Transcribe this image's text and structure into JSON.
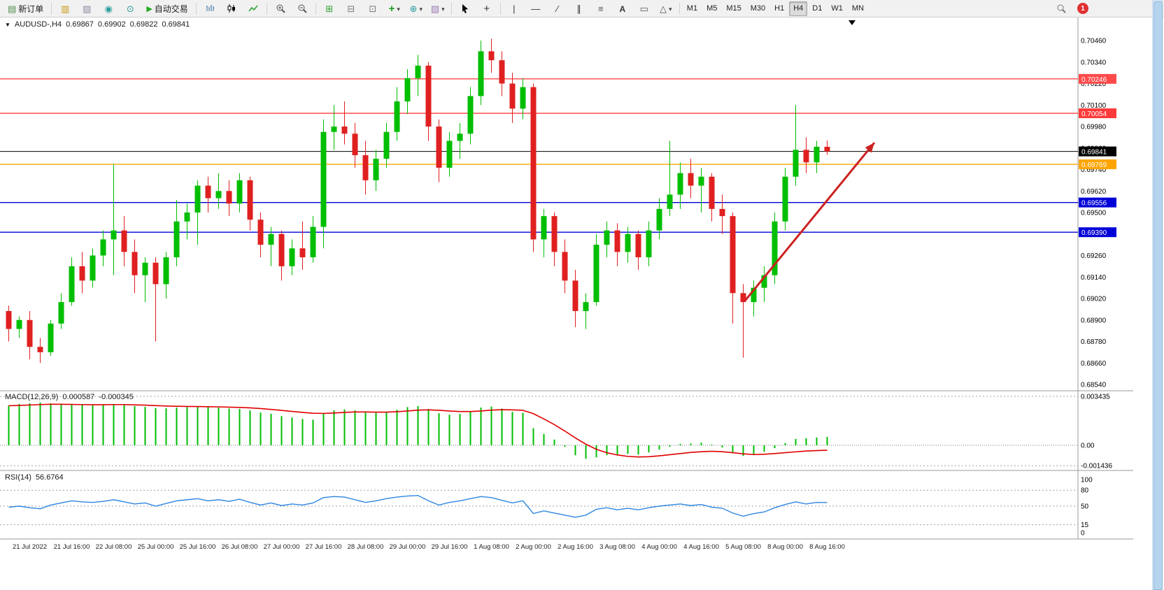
{
  "toolbar": {
    "new_order_label": "新订单",
    "auto_trading_label": "自动交易",
    "timeframes": [
      "M1",
      "M5",
      "M15",
      "M30",
      "H1",
      "H4",
      "D1",
      "W1",
      "MN"
    ],
    "active_timeframe": "H4",
    "notification_count": "1"
  },
  "chart_header": {
    "symbol": "AUDUSD-,H4",
    "open": "0.69867",
    "high": "0.69902",
    "low": "0.69822",
    "close": "0.69841"
  },
  "macd_header": {
    "label": "MACD(12,26,9)",
    "main_value": "0.000587",
    "signal_value": "-0.000345"
  },
  "rsi_header": {
    "label": "RSI(14)",
    "value": "56.6764"
  },
  "chart_data": {
    "type": "candlestick",
    "symbol": "AUDUSD",
    "timeframe": "H4",
    "main": {
      "up_color": "#00BE00",
      "down_color": "#E02020",
      "candles": [
        [
          0.6895,
          0.6898,
          0.6878,
          0.6885
        ],
        [
          0.6885,
          0.6892,
          0.688,
          0.689
        ],
        [
          0.689,
          0.6895,
          0.6868,
          0.6875
        ],
        [
          0.6875,
          0.688,
          0.6866,
          0.6872
        ],
        [
          0.6872,
          0.689,
          0.687,
          0.6888
        ],
        [
          0.6888,
          0.6905,
          0.6885,
          0.69
        ],
        [
          0.69,
          0.6925,
          0.6898,
          0.692
        ],
        [
          0.692,
          0.6928,
          0.6905,
          0.6912
        ],
        [
          0.6912,
          0.693,
          0.6908,
          0.6926
        ],
        [
          0.6926,
          0.694,
          0.692,
          0.6935
        ],
        [
          0.6935,
          0.6977,
          0.6915,
          0.694
        ],
        [
          0.694,
          0.6948,
          0.692,
          0.6928
        ],
        [
          0.6928,
          0.6935,
          0.6905,
          0.6915
        ],
        [
          0.6915,
          0.6925,
          0.69,
          0.6922
        ],
        [
          0.6922,
          0.6925,
          0.6878,
          0.691
        ],
        [
          0.691,
          0.6928,
          0.6902,
          0.6925
        ],
        [
          0.6925,
          0.6957,
          0.692,
          0.6945
        ],
        [
          0.6945,
          0.6955,
          0.6935,
          0.695
        ],
        [
          0.695,
          0.6968,
          0.6932,
          0.6965
        ],
        [
          0.6965,
          0.697,
          0.695,
          0.6958
        ],
        [
          0.6958,
          0.6972,
          0.6952,
          0.6962
        ],
        [
          0.6962,
          0.6968,
          0.6948,
          0.6955
        ],
        [
          0.6955,
          0.6972,
          0.695,
          0.6968
        ],
        [
          0.6968,
          0.697,
          0.694,
          0.6946
        ],
        [
          0.6946,
          0.695,
          0.6925,
          0.6932
        ],
        [
          0.6932,
          0.6942,
          0.692,
          0.6938
        ],
        [
          0.6938,
          0.694,
          0.6912,
          0.692
        ],
        [
          0.692,
          0.6935,
          0.6915,
          0.693
        ],
        [
          0.693,
          0.6945,
          0.6918,
          0.6925
        ],
        [
          0.6925,
          0.6948,
          0.6922,
          0.6942
        ],
        [
          0.6942,
          0.7002,
          0.693,
          0.6995
        ],
        [
          0.6995,
          0.701,
          0.6985,
          0.6998
        ],
        [
          0.6998,
          0.7012,
          0.6988,
          0.6994
        ],
        [
          0.6994,
          0.7,
          0.6975,
          0.6982
        ],
        [
          0.6982,
          0.699,
          0.696,
          0.6968
        ],
        [
          0.6968,
          0.6985,
          0.6962,
          0.698
        ],
        [
          0.698,
          0.7,
          0.6975,
          0.6995
        ],
        [
          0.6995,
          0.702,
          0.699,
          0.7012
        ],
        [
          0.7012,
          0.703,
          0.7005,
          0.7025
        ],
        [
          0.7025,
          0.7038,
          0.7015,
          0.7032
        ],
        [
          0.7032,
          0.7034,
          0.699,
          0.6998
        ],
        [
          0.6998,
          0.7002,
          0.6967,
          0.6975
        ],
        [
          0.6975,
          0.6995,
          0.697,
          0.699
        ],
        [
          0.699,
          0.7,
          0.698,
          0.6994
        ],
        [
          0.6994,
          0.702,
          0.6988,
          0.7015
        ],
        [
          0.7015,
          0.7046,
          0.701,
          0.704
        ],
        [
          0.704,
          0.7047,
          0.7028,
          0.7035
        ],
        [
          0.7035,
          0.704,
          0.7015,
          0.7022
        ],
        [
          0.7022,
          0.7028,
          0.7,
          0.7008
        ],
        [
          0.7008,
          0.7025,
          0.7002,
          0.702
        ],
        [
          0.702,
          0.7022,
          0.6928,
          0.6935
        ],
        [
          0.6935,
          0.6952,
          0.6925,
          0.6948
        ],
        [
          0.6948,
          0.695,
          0.692,
          0.6928
        ],
        [
          0.6928,
          0.6935,
          0.6905,
          0.6912
        ],
        [
          0.6912,
          0.6918,
          0.6886,
          0.6895
        ],
        [
          0.6895,
          0.6905,
          0.6885,
          0.69
        ],
        [
          0.69,
          0.6938,
          0.6898,
          0.6932
        ],
        [
          0.6932,
          0.6945,
          0.6925,
          0.694
        ],
        [
          0.694,
          0.6944,
          0.692,
          0.6928
        ],
        [
          0.6928,
          0.6942,
          0.6922,
          0.6938
        ],
        [
          0.6938,
          0.694,
          0.6918,
          0.6925
        ],
        [
          0.6925,
          0.6945,
          0.692,
          0.694
        ],
        [
          0.694,
          0.6958,
          0.6935,
          0.6952
        ],
        [
          0.6952,
          0.699,
          0.6948,
          0.696
        ],
        [
          0.696,
          0.6978,
          0.6952,
          0.6972
        ],
        [
          0.6972,
          0.698,
          0.6958,
          0.6965
        ],
        [
          0.6965,
          0.6975,
          0.695,
          0.697
        ],
        [
          0.697,
          0.6972,
          0.6945,
          0.6952
        ],
        [
          0.6952,
          0.696,
          0.6938,
          0.6948
        ],
        [
          0.6948,
          0.695,
          0.6888,
          0.6905
        ],
        [
          0.6905,
          0.691,
          0.6869,
          0.69
        ],
        [
          0.69,
          0.6912,
          0.6892,
          0.6908
        ],
        [
          0.6908,
          0.692,
          0.69,
          0.6915
        ],
        [
          0.6915,
          0.695,
          0.691,
          0.6945
        ],
        [
          0.6945,
          0.6975,
          0.694,
          0.697
        ],
        [
          0.697,
          0.701,
          0.6965,
          0.6985
        ],
        [
          0.6985,
          0.6992,
          0.6972,
          0.6978
        ],
        [
          0.6978,
          0.699,
          0.6972,
          0.69867
        ],
        [
          0.69867,
          0.69902,
          0.69822,
          0.69841
        ]
      ],
      "hlines": [
        {
          "price": 0.70246,
          "color": "#FF4A4A",
          "label": "0.70246"
        },
        {
          "price": 0.70054,
          "color": "#FF3A3A",
          "label": "0.70054"
        },
        {
          "price": 0.69841,
          "color": "#000000",
          "label": "0.69841"
        },
        {
          "price": 0.69769,
          "color": "#FFA500",
          "label": "0.69769"
        },
        {
          "price": 0.69556,
          "color": "#0000D8",
          "label": "0.69556"
        },
        {
          "price": 0.6939,
          "color": "#0000D8",
          "label": "0.69390"
        }
      ],
      "arrow": {
        "bar_from": 70.2,
        "price_from": 0.6901,
        "bar_to": 82.5,
        "price_to": 0.6989,
        "color": "#CC2222"
      },
      "y_axis": {
        "labels": [
          "0.70460",
          "0.70340",
          "0.70220",
          "0.70100",
          "0.69980",
          "0.69860",
          "0.69740",
          "0.69620",
          "0.69500",
          "0.69380",
          "0.69260",
          "0.69140",
          "0.69020",
          "0.68900",
          "0.68780",
          "0.68660",
          "0.68540"
        ]
      },
      "x_axis": {
        "labels": [
          {
            "bar": 2,
            "text": "21 Jul 2022"
          },
          {
            "bar": 6,
            "text": "21 Jul 16:00"
          },
          {
            "bar": 10,
            "text": "22 Jul 08:00"
          },
          {
            "bar": 14,
            "text": "25 Jul 00:00"
          },
          {
            "bar": 18,
            "text": "25 Jul 16:00"
          },
          {
            "bar": 22,
            "text": "26 Jul 08:00"
          },
          {
            "bar": 26,
            "text": "27 Jul 00:00"
          },
          {
            "bar": 30,
            "text": "27 Jul 16:00"
          },
          {
            "bar": 34,
            "text": "28 Jul 08:00"
          },
          {
            "bar": 38,
            "text": "29 Jul 00:00"
          },
          {
            "bar": 42,
            "text": "29 Jul 16:00"
          },
          {
            "bar": 46,
            "text": "1 Aug 08:00"
          },
          {
            "bar": 50,
            "text": "2 Aug 00:00"
          },
          {
            "bar": 54,
            "text": "2 Aug 16:00"
          },
          {
            "bar": 58,
            "text": "3 Aug 08:00"
          },
          {
            "bar": 62,
            "text": "4 Aug 00:00"
          },
          {
            "bar": 66,
            "text": "4 Aug 16:00"
          },
          {
            "bar": 70,
            "text": "5 Aug 08:00"
          },
          {
            "bar": 74,
            "text": "8 Aug 00:00"
          },
          {
            "bar": 78,
            "text": "8 Aug 16:00"
          }
        ]
      }
    },
    "macd": {
      "params": "12,26,9",
      "hist_color": "#00BE00",
      "signal_color": "#E00000",
      "histogram": [
        0.0028,
        0.0029,
        0.00295,
        0.003,
        0.00295,
        0.0029,
        0.00288,
        0.00285,
        0.00282,
        0.00285,
        0.0029,
        0.00285,
        0.00275,
        0.0027,
        0.00262,
        0.0026,
        0.00265,
        0.00268,
        0.00272,
        0.00268,
        0.00265,
        0.00258,
        0.00255,
        0.00245,
        0.0023,
        0.00222,
        0.00205,
        0.00195,
        0.00185,
        0.0018,
        0.00225,
        0.00245,
        0.00252,
        0.00245,
        0.0023,
        0.00228,
        0.00235,
        0.0025,
        0.00268,
        0.00275,
        0.00255,
        0.00225,
        0.00215,
        0.0022,
        0.0024,
        0.00265,
        0.00272,
        0.00258,
        0.00235,
        0.00228,
        0.0012,
        0.0008,
        0.0004,
        -0.0001,
        -0.0007,
        -0.00095,
        -0.00085,
        -0.0007,
        -0.00068,
        -0.0006,
        -0.00065,
        -0.0005,
        -0.0003,
        -0.0001,
        0.0001,
        0.00012,
        0.00018,
        5e-05,
        -0.00015,
        -0.00055,
        -0.00075,
        -0.00065,
        -0.00045,
        -0.0002,
        0.00015,
        0.00045,
        0.0005,
        0.00055,
        0.000587
      ],
      "signal": [
        0.00278,
        0.0028,
        0.00283,
        0.00286,
        0.00288,
        0.00288,
        0.00287,
        0.00286,
        0.00285,
        0.00285,
        0.00286,
        0.00286,
        0.00284,
        0.00282,
        0.00279,
        0.00276,
        0.00274,
        0.00273,
        0.00272,
        0.00271,
        0.0027,
        0.00268,
        0.00266,
        0.00263,
        0.00258,
        0.00252,
        0.00245,
        0.00238,
        0.00231,
        0.00225,
        0.00224,
        0.00227,
        0.00231,
        0.00234,
        0.00234,
        0.00233,
        0.00233,
        0.00236,
        0.00241,
        0.00247,
        0.00249,
        0.00246,
        0.00241,
        0.00237,
        0.00237,
        0.00241,
        0.00247,
        0.0025,
        0.00249,
        0.00246,
        0.00222,
        0.00185,
        0.00145,
        0.001,
        0.00052,
        8e-05,
        -0.00028,
        -0.00052,
        -0.00068,
        -0.00078,
        -0.00082,
        -0.0008,
        -0.00074,
        -0.00066,
        -0.00058,
        -0.0005,
        -0.00045,
        -0.00042,
        -0.00045,
        -0.00052,
        -0.0006,
        -0.00065,
        -0.00063,
        -0.00058,
        -0.00052,
        -0.00046,
        -0.0004,
        -0.00037,
        -0.000345
      ],
      "axis_labels": [
        {
          "value": 0.003435,
          "text": "0.003435"
        },
        {
          "value": 0.0,
          "text": "0.00"
        },
        {
          "value": -0.001436,
          "text": "-0.001436"
        }
      ]
    },
    "rsi": {
      "period": 14,
      "line_color": "#2E86E0",
      "levels": [
        80,
        50,
        15
      ],
      "values": [
        48,
        50,
        47,
        45,
        52,
        56,
        60,
        58,
        57,
        59,
        62,
        58,
        54,
        56,
        50,
        55,
        60,
        62,
        64,
        60,
        62,
        59,
        63,
        57,
        52,
        56,
        51,
        54,
        52,
        56,
        66,
        68,
        67,
        62,
        57,
        60,
        64,
        67,
        69,
        70,
        60,
        52,
        57,
        60,
        64,
        68,
        66,
        61,
        56,
        60,
        36,
        41,
        37,
        33,
        29,
        33,
        44,
        47,
        43,
        46,
        43,
        47,
        50,
        52,
        54,
        51,
        53,
        48,
        46,
        37,
        31,
        36,
        39,
        47,
        53,
        58,
        54,
        57,
        56.68
      ],
      "axis_labels": [
        {
          "value": 100,
          "text": "100"
        },
        {
          "value": 80,
          "text": "80"
        },
        {
          "value": 50,
          "text": "50"
        },
        {
          "value": 15,
          "text": "15"
        },
        {
          "value": 0,
          "text": "0"
        }
      ]
    }
  }
}
